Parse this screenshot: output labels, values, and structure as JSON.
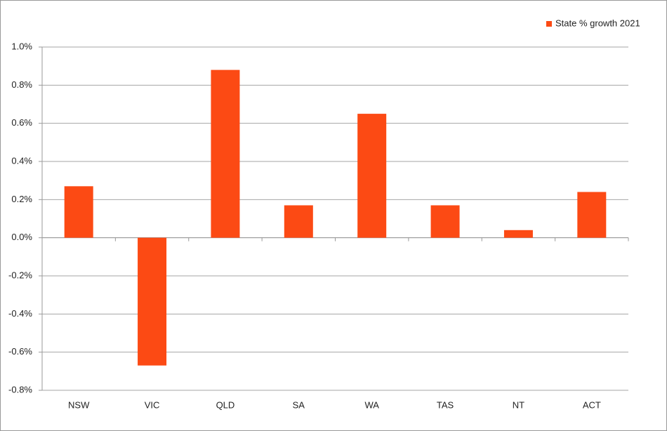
{
  "chart_data": {
    "type": "bar",
    "categories": [
      "NSW",
      "VIC",
      "QLD",
      "SA",
      "WA",
      "TAS",
      "NT",
      "ACT"
    ],
    "series": [
      {
        "name": "State % growth 2021",
        "color": "#fc4a14",
        "values": [
          0.27,
          -0.67,
          0.88,
          0.17,
          0.65,
          0.17,
          0.04,
          0.24
        ]
      }
    ],
    "ylim": [
      -0.8,
      1.0
    ],
    "yticks": [
      {
        "value": -0.8,
        "label": "-0.8%"
      },
      {
        "value": -0.6,
        "label": "-0.6%"
      },
      {
        "value": -0.4,
        "label": "-0.4%"
      },
      {
        "value": -0.2,
        "label": "-0.2%"
      },
      {
        "value": 0,
        "label": "0.0%"
      },
      {
        "value": 0.2,
        "label": "0.2%"
      },
      {
        "value": 0.4,
        "label": "0.4%"
      },
      {
        "value": 0.6,
        "label": "0.6%"
      },
      {
        "value": 0.8,
        "label": "0.8%"
      },
      {
        "value": 1.0,
        "label": "1.0%"
      }
    ],
    "grid": true,
    "legend": "top-right"
  }
}
